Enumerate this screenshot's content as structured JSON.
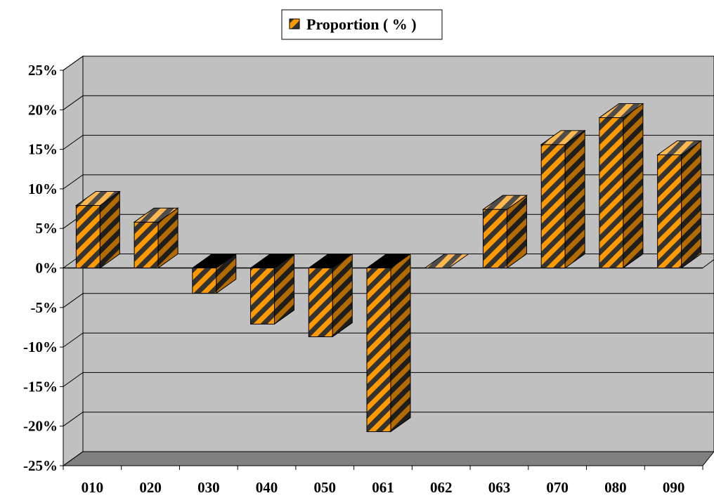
{
  "chart_data": {
    "type": "bar",
    "title": "",
    "xlabel": "",
    "ylabel": "",
    "categories": [
      "010",
      "020",
      "030",
      "040",
      "050",
      "061",
      "062",
      "063",
      "070",
      "080",
      "090"
    ],
    "series": [
      {
        "name": "Proportion ( % )",
        "values": [
          7.9,
          5.8,
          -3.2,
          -7.1,
          -8.7,
          -20.7,
          0.0,
          7.4,
          15.6,
          19.0,
          14.3
        ]
      }
    ],
    "ylim": [
      -25,
      25
    ],
    "yticks": [
      25,
      20,
      15,
      10,
      5,
      0,
      -5,
      -10,
      -15,
      -20,
      -25
    ],
    "ytick_labels": [
      "25%",
      "20%",
      "15%",
      "10%",
      "5%",
      "0%",
      "-5%",
      "-10%",
      "-15%",
      "-20%",
      "-25%"
    ],
    "grid": true,
    "three_d": true,
    "legend_position": "top-center",
    "colors": {
      "bar_stripe_light": "#ff9900",
      "bar_stripe_dark": "#333333",
      "wall": "#c0c0c0",
      "floor": "#808080",
      "gridline": "#000000"
    }
  }
}
